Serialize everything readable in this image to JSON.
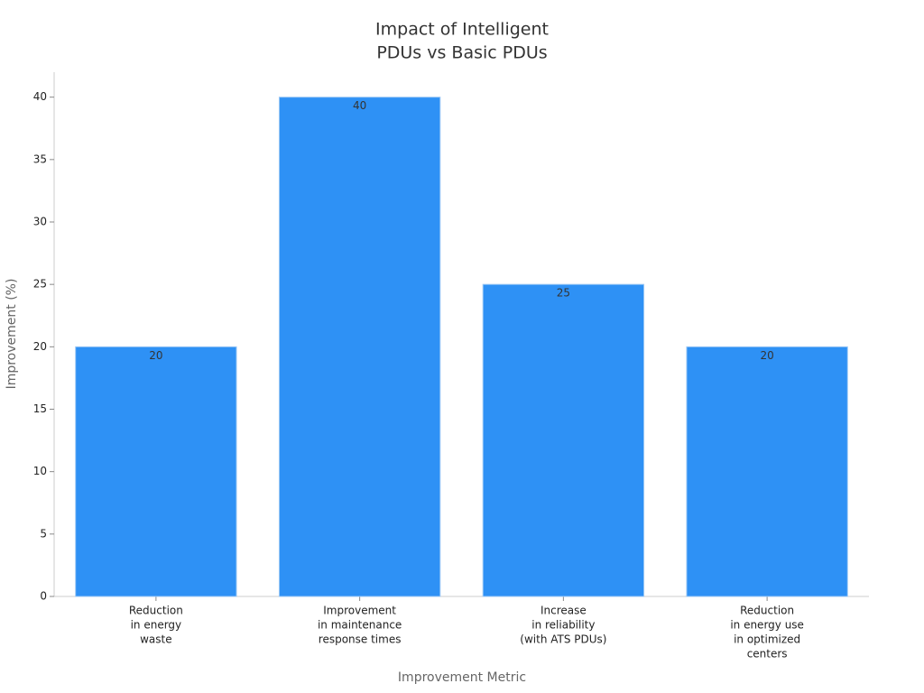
{
  "chart_data": {
    "type": "bar",
    "title": [
      "Impact of Intelligent",
      "PDUs vs Basic PDUs"
    ],
    "x_label": "Improvement Metric",
    "y_label": "Improvement (%)",
    "categories": [
      [
        "Reduction",
        "in energy",
        "waste"
      ],
      [
        "Improvement",
        "in maintenance",
        "response times"
      ],
      [
        "Increase",
        "in reliability",
        "(with ATS PDUs)"
      ],
      [
        "Reduction",
        "in energy use",
        "in optimized",
        "centers"
      ]
    ],
    "values": [
      20,
      40,
      25,
      20
    ],
    "color": "#2e91f5",
    "ylim": [
      0,
      42
    ],
    "yticks": [
      0,
      5,
      10,
      15,
      20,
      25,
      30,
      35,
      40
    ],
    "grid": false
  }
}
